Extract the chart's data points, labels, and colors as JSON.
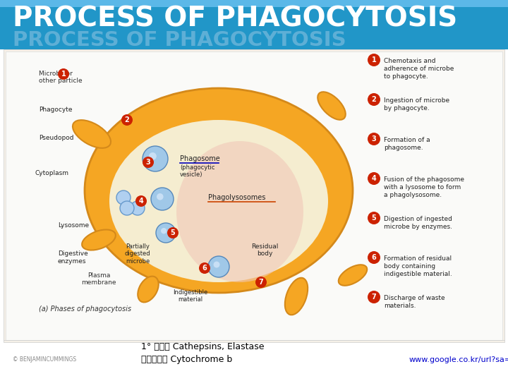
{
  "title": "PROCESS OF PHAGOCYTOSIS",
  "title_color": "#FFFFFF",
  "title_bg_color": "#2196C8",
  "title_fontsize": 28,
  "bottom_text_left1": "1° 과립： Cathepsins, Elastase",
  "bottom_text_left2": "분비과립： Cytochrome b",
  "bottom_text_right": "www.google.co.kr/url?sa=i&rc",
  "bottom_text_color": "#000000",
  "bottom_link_color": "#0000CC",
  "bg_color": "#FFFFFF",
  "figsize": [
    7.2,
    5.4
  ],
  "dpi": 100
}
